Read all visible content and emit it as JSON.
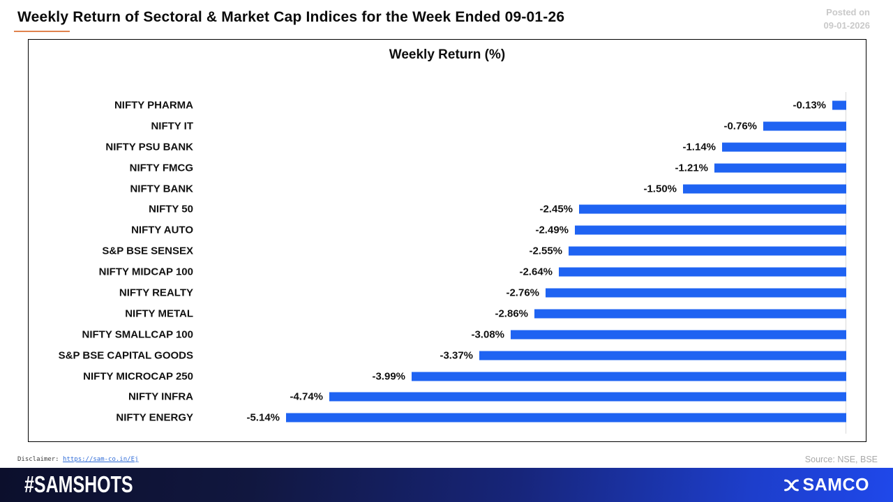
{
  "header": {
    "title": "Weekly Return of Sectoral & Market Cap Indices for the Week Ended 09-01-26",
    "posted_on_line1": "Posted on",
    "posted_on_line2": "09-01-2026"
  },
  "chart_data": {
    "type": "bar",
    "orientation": "horizontal",
    "title": "Weekly Return (%)",
    "categories": [
      "NIFTY PHARMA",
      "NIFTY IT",
      "NIFTY PSU BANK",
      "NIFTY FMCG",
      "NIFTY BANK",
      "NIFTY 50",
      "NIFTY AUTO",
      "S&P BSE SENSEX",
      "NIFTY MIDCAP 100",
      "NIFTY REALTY",
      "NIFTY METAL",
      "NIFTY SMALLCAP 100",
      "S&P BSE CAPITAL GOODS",
      "NIFTY MICROCAP 250",
      "NIFTY INFRA",
      "NIFTY ENERGY"
    ],
    "values": [
      -0.13,
      -0.76,
      -1.14,
      -1.21,
      -1.5,
      -2.45,
      -2.49,
      -2.55,
      -2.64,
      -2.76,
      -2.86,
      -3.08,
      -3.37,
      -3.99,
      -4.74,
      -5.14
    ],
    "value_labels": [
      "-0.13%",
      "-0.76%",
      "-1.14%",
      "-1.21%",
      "-1.50%",
      "-2.45%",
      "-2.49%",
      "-2.55%",
      "-2.64%",
      "-2.76%",
      "-2.86%",
      "-3.08%",
      "-3.37%",
      "-3.99%",
      "-4.74%",
      "-5.14%"
    ],
    "xlim": [
      -5.14,
      0
    ],
    "grid": false,
    "legend": false,
    "bar_color": "#1f63f2",
    "axis_color": "#d9d9d9"
  },
  "meta": {
    "disclaimer_label": "Disclaimer:",
    "disclaimer_link": "https://sam-co.in/Ej",
    "source": "Source: NSE, BSE"
  },
  "footer": {
    "hashtag": "#SAMSHOTS",
    "brand": "SAMCO",
    "bg_left": "#0c0f2c",
    "bg_right": "#1f48ea"
  }
}
